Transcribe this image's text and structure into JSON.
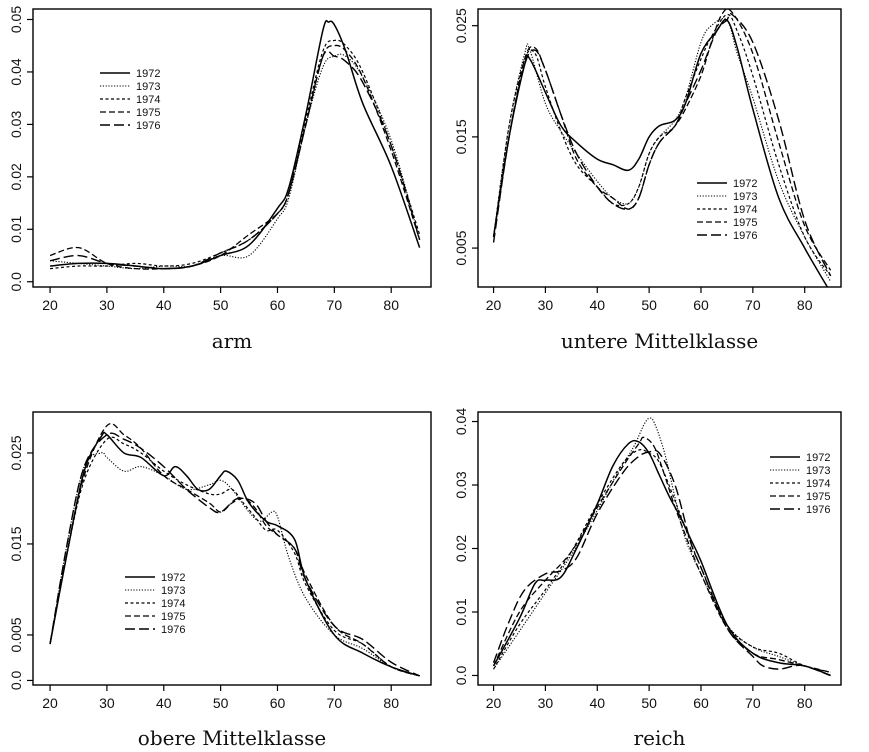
{
  "chart_data": [
    {
      "type": "line",
      "title": "arm",
      "xlabel": "",
      "ylabel": "",
      "xlim": [
        17,
        87
      ],
      "ylim": [
        -0.001,
        0.052
      ],
      "xticks": [
        20,
        30,
        40,
        50,
        60,
        70,
        80
      ],
      "yticks": [
        0,
        0.01,
        0.02,
        0.03,
        0.04,
        0.05
      ],
      "ytick_labels": [
        "0.0",
        "0.01",
        "0.02",
        "0.03",
        "0.04",
        "0.05"
      ],
      "legend": "upper-left",
      "series": [
        {
          "name": "1972",
          "x": [
            20,
            25,
            30,
            35,
            40,
            45,
            50,
            55,
            60,
            62,
            65,
            68,
            69,
            70,
            72,
            75,
            80,
            85
          ],
          "y": [
            0.003,
            0.0035,
            0.0035,
            0.003,
            0.0025,
            0.003,
            0.005,
            0.007,
            0.014,
            0.018,
            0.032,
            0.048,
            0.0495,
            0.049,
            0.044,
            0.034,
            0.022,
            0.0065
          ]
        },
        {
          "name": "1973",
          "x": [
            20,
            25,
            30,
            35,
            40,
            45,
            50,
            55,
            60,
            62,
            65,
            68,
            70,
            72,
            75,
            80,
            85
          ],
          "y": [
            0.004,
            0.0035,
            0.003,
            0.0025,
            0.003,
            0.003,
            0.005,
            0.005,
            0.012,
            0.016,
            0.03,
            0.041,
            0.043,
            0.043,
            0.039,
            0.027,
            0.008
          ]
        },
        {
          "name": "1974",
          "x": [
            20,
            25,
            30,
            35,
            40,
            45,
            50,
            55,
            60,
            62,
            65,
            68,
            70,
            72,
            75,
            80,
            85
          ],
          "y": [
            0.0025,
            0.003,
            0.003,
            0.0035,
            0.003,
            0.0035,
            0.0055,
            0.008,
            0.013,
            0.017,
            0.031,
            0.044,
            0.046,
            0.045,
            0.04,
            0.026,
            0.009
          ]
        },
        {
          "name": "1975",
          "x": [
            20,
            25,
            30,
            35,
            40,
            45,
            50,
            55,
            60,
            62,
            65,
            68,
            70,
            72,
            75,
            80,
            85
          ],
          "y": [
            0.005,
            0.0065,
            0.0035,
            0.0025,
            0.0025,
            0.003,
            0.005,
            0.009,
            0.013,
            0.017,
            0.03,
            0.043,
            0.045,
            0.044,
            0.039,
            0.025,
            0.008
          ]
        },
        {
          "name": "1976",
          "x": [
            20,
            25,
            30,
            35,
            40,
            45,
            50,
            55,
            60,
            62,
            65,
            68,
            70,
            72,
            75,
            80,
            85
          ],
          "y": [
            0.004,
            0.005,
            0.0035,
            0.003,
            0.0025,
            0.003,
            0.0055,
            0.008,
            0.013,
            0.017,
            0.03,
            0.043,
            0.043,
            0.042,
            0.038,
            0.026,
            0.008
          ]
        }
      ]
    },
    {
      "type": "line",
      "title": "untere Mittelklasse",
      "xlabel": "",
      "ylabel": "",
      "xlim": [
        17,
        87
      ],
      "ylim": [
        0.0015,
        0.0265
      ],
      "xticks": [
        20,
        30,
        40,
        50,
        60,
        70,
        80
      ],
      "yticks": [
        0.005,
        0.015,
        0.025
      ],
      "ytick_labels": [
        "0.005",
        "0.015",
        "0.025"
      ],
      "legend": "center-right",
      "series": [
        {
          "name": "1972",
          "x": [
            20,
            23,
            26,
            27,
            30,
            33,
            36,
            40,
            43,
            46,
            48,
            50,
            52,
            55,
            57,
            60,
            63,
            65,
            67,
            70,
            75,
            80,
            85
          ],
          "y": [
            0.006,
            0.015,
            0.0215,
            0.022,
            0.019,
            0.016,
            0.0145,
            0.013,
            0.0125,
            0.012,
            0.013,
            0.015,
            0.016,
            0.0165,
            0.018,
            0.0225,
            0.0245,
            0.0255,
            0.023,
            0.0175,
            0.0095,
            0.005,
            0.001
          ]
        },
        {
          "name": "1973",
          "x": [
            20,
            23,
            26,
            27,
            30,
            33,
            36,
            40,
            43,
            46,
            48,
            50,
            52,
            55,
            57,
            60,
            62,
            65,
            67,
            70,
            75,
            80,
            85
          ],
          "y": [
            0.006,
            0.016,
            0.0225,
            0.0228,
            0.018,
            0.0155,
            0.0135,
            0.011,
            0.0095,
            0.009,
            0.0105,
            0.0135,
            0.015,
            0.0165,
            0.0185,
            0.0235,
            0.025,
            0.0255,
            0.0225,
            0.0185,
            0.011,
            0.006,
            0.002
          ]
        },
        {
          "name": "1974",
          "x": [
            20,
            23,
            26,
            28,
            30,
            33,
            36,
            40,
            43,
            46,
            48,
            50,
            52,
            55,
            57,
            60,
            62,
            65,
            67,
            70,
            75,
            80,
            85
          ],
          "y": [
            0.006,
            0.016,
            0.022,
            0.0225,
            0.0195,
            0.0155,
            0.0125,
            0.0105,
            0.009,
            0.009,
            0.0105,
            0.0135,
            0.015,
            0.016,
            0.0185,
            0.022,
            0.024,
            0.026,
            0.0245,
            0.0205,
            0.0125,
            0.006,
            0.0025
          ]
        },
        {
          "name": "1975",
          "x": [
            20,
            23,
            26,
            28,
            30,
            33,
            36,
            40,
            43,
            46,
            48,
            50,
            52,
            55,
            57,
            60,
            62,
            64,
            66,
            70,
            75,
            80,
            85
          ],
          "y": [
            0.006,
            0.015,
            0.022,
            0.023,
            0.021,
            0.017,
            0.013,
            0.0105,
            0.0095,
            0.0085,
            0.0095,
            0.0125,
            0.0145,
            0.016,
            0.0175,
            0.0205,
            0.0235,
            0.026,
            0.0262,
            0.0225,
            0.0145,
            0.007,
            0.003
          ]
        },
        {
          "name": "1976",
          "x": [
            20,
            23,
            26,
            28,
            30,
            33,
            36,
            40,
            43,
            46,
            48,
            50,
            52,
            55,
            57,
            60,
            63,
            65,
            66,
            70,
            75,
            80,
            85
          ],
          "y": [
            0.0055,
            0.015,
            0.0215,
            0.0228,
            0.021,
            0.017,
            0.0135,
            0.0105,
            0.009,
            0.0085,
            0.0095,
            0.0125,
            0.0145,
            0.016,
            0.018,
            0.021,
            0.0245,
            0.0255,
            0.026,
            0.0235,
            0.0165,
            0.0075,
            0.0025
          ]
        }
      ]
    },
    {
      "type": "line",
      "title": "obere Mittelklasse",
      "xlabel": "",
      "ylabel": "",
      "xlim": [
        17,
        87
      ],
      "ylim": [
        -0.0005,
        0.0295
      ],
      "xticks": [
        20,
        30,
        40,
        50,
        60,
        70,
        80
      ],
      "yticks": [
        0,
        0.005,
        0.015,
        0.025
      ],
      "ytick_labels": [
        "0.0",
        "0.005",
        "0.015",
        "0.025"
      ],
      "legend": "lower-left",
      "series": [
        {
          "name": "1972",
          "x": [
            20,
            23,
            26,
            29,
            30,
            33,
            36,
            40,
            42,
            44,
            46,
            48,
            50,
            51,
            53,
            55,
            58,
            60,
            63,
            65,
            70,
            75,
            80,
            85
          ],
          "y": [
            0.004,
            0.014,
            0.023,
            0.0268,
            0.027,
            0.025,
            0.0245,
            0.0225,
            0.0235,
            0.0225,
            0.021,
            0.021,
            0.0225,
            0.023,
            0.022,
            0.0195,
            0.0175,
            0.017,
            0.0155,
            0.011,
            0.005,
            0.003,
            0.0015,
            0.0005
          ]
        },
        {
          "name": "1973",
          "x": [
            20,
            23,
            26,
            29,
            30,
            33,
            36,
            40,
            44,
            48,
            50,
            52,
            55,
            57,
            59,
            60,
            62,
            65,
            70,
            75,
            80,
            85
          ],
          "y": [
            0.004,
            0.015,
            0.0235,
            0.025,
            0.0245,
            0.023,
            0.0235,
            0.0225,
            0.021,
            0.0215,
            0.022,
            0.021,
            0.0185,
            0.0175,
            0.0185,
            0.018,
            0.0135,
            0.009,
            0.005,
            0.0035,
            0.0015,
            0.0005
          ]
        },
        {
          "name": "1974",
          "x": [
            20,
            23,
            26,
            30,
            33,
            36,
            40,
            44,
            48,
            50,
            52,
            54,
            56,
            58,
            60,
            63,
            65,
            70,
            75,
            80,
            85
          ],
          "y": [
            0.004,
            0.014,
            0.022,
            0.0265,
            0.026,
            0.025,
            0.023,
            0.0215,
            0.0205,
            0.0205,
            0.021,
            0.0195,
            0.018,
            0.0165,
            0.0165,
            0.014,
            0.0105,
            0.0055,
            0.004,
            0.0015,
            0.0005
          ]
        },
        {
          "name": "1975",
          "x": [
            20,
            23,
            26,
            30,
            33,
            36,
            40,
            44,
            48,
            50,
            52,
            54,
            56,
            58,
            60,
            63,
            65,
            70,
            75,
            80,
            85
          ],
          "y": [
            0.004,
            0.014,
            0.0225,
            0.028,
            0.027,
            0.0255,
            0.0225,
            0.021,
            0.0195,
            0.0185,
            0.0195,
            0.02,
            0.019,
            0.017,
            0.016,
            0.0145,
            0.0115,
            0.006,
            0.004,
            0.0015,
            0.0005
          ]
        },
        {
          "name": "1976",
          "x": [
            20,
            23,
            26,
            30,
            33,
            36,
            40,
            44,
            48,
            50,
            53,
            56,
            58,
            60,
            63,
            65,
            70,
            75,
            80,
            85
          ],
          "y": [
            0.004,
            0.015,
            0.0235,
            0.027,
            0.0265,
            0.0255,
            0.0235,
            0.021,
            0.019,
            0.0185,
            0.02,
            0.0195,
            0.0175,
            0.016,
            0.0145,
            0.011,
            0.006,
            0.0045,
            0.002,
            0.0005
          ]
        }
      ]
    },
    {
      "type": "line",
      "title": "reich",
      "xlabel": "",
      "ylabel": "",
      "xlim": [
        17,
        87
      ],
      "ylim": [
        -0.0015,
        0.0415
      ],
      "xticks": [
        20,
        30,
        40,
        50,
        60,
        70,
        80
      ],
      "yticks": [
        0,
        0.01,
        0.02,
        0.03,
        0.04
      ],
      "ytick_labels": [
        "0.0",
        "0.01",
        "0.02",
        "0.03",
        "0.04"
      ],
      "legend": "upper-right",
      "series": [
        {
          "name": "1972",
          "x": [
            20,
            25,
            28,
            30,
            33,
            36,
            40,
            43,
            46,
            48,
            50,
            52,
            54,
            56,
            58,
            60,
            65,
            70,
            75,
            80,
            85
          ],
          "y": [
            0.0015,
            0.009,
            0.0145,
            0.015,
            0.0155,
            0.02,
            0.027,
            0.033,
            0.0365,
            0.0368,
            0.035,
            0.0315,
            0.028,
            0.025,
            0.0215,
            0.018,
            0.008,
            0.0035,
            0.002,
            0.0015,
            0
          ]
        },
        {
          "name": "1973",
          "x": [
            20,
            25,
            30,
            35,
            40,
            44,
            47,
            49,
            50,
            51,
            53,
            55,
            57,
            60,
            65,
            70,
            75,
            80,
            85
          ],
          "y": [
            0.001,
            0.007,
            0.013,
            0.019,
            0.026,
            0.032,
            0.036,
            0.0395,
            0.0405,
            0.0398,
            0.035,
            0.028,
            0.0215,
            0.016,
            0.008,
            0.0045,
            0.003,
            0.0015,
            0.0005
          ]
        },
        {
          "name": "1974",
          "x": [
            20,
            25,
            30,
            35,
            40,
            45,
            48,
            50,
            52,
            55,
            58,
            60,
            65,
            70,
            75,
            80,
            85
          ],
          "y": [
            0.001,
            0.008,
            0.0135,
            0.0195,
            0.027,
            0.0335,
            0.0355,
            0.035,
            0.0335,
            0.0275,
            0.021,
            0.017,
            0.008,
            0.0045,
            0.0035,
            0.0015,
            0.0005
          ]
        },
        {
          "name": "1975",
          "x": [
            20,
            25,
            30,
            35,
            40,
            45,
            48,
            49,
            51,
            53,
            55,
            58,
            60,
            65,
            70,
            75,
            80,
            85
          ],
          "y": [
            0.0015,
            0.01,
            0.015,
            0.0195,
            0.0265,
            0.033,
            0.0365,
            0.0375,
            0.036,
            0.0315,
            0.0265,
            0.02,
            0.016,
            0.0075,
            0.0035,
            0.0025,
            0.0015,
            0.0005
          ]
        },
        {
          "name": "1976",
          "x": [
            20,
            23,
            26,
            30,
            33,
            36,
            40,
            45,
            48,
            50,
            52,
            55,
            58,
            60,
            65,
            70,
            72,
            75,
            78,
            80,
            85
          ],
          "y": [
            0.002,
            0.0085,
            0.0135,
            0.016,
            0.0165,
            0.0185,
            0.0255,
            0.032,
            0.0345,
            0.0352,
            0.035,
            0.03,
            0.021,
            0.017,
            0.0075,
            0.003,
            0.0015,
            0.001,
            0.0015,
            0.0015,
            0
          ]
        }
      ]
    }
  ]
}
